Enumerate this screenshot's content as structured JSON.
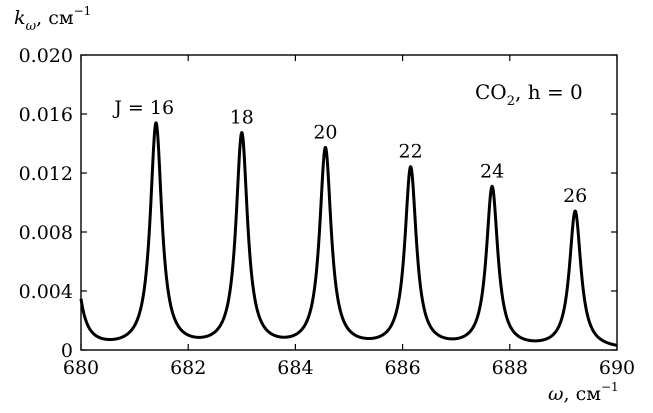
{
  "chart_data": {
    "type": "line",
    "ylabel": {
      "main": "k",
      "sub": "ω",
      "unit": ", см",
      "exp": "−1"
    },
    "xlabel": {
      "main": "ω",
      "unit": ", см",
      "exp": "−1"
    },
    "xlim": [
      680,
      690
    ],
    "ylim": [
      0,
      0.02
    ],
    "xticks": [
      680,
      682,
      684,
      686,
      688,
      690
    ],
    "yticks": [
      0,
      0.004,
      0.008,
      0.012,
      0.016,
      0.02
    ],
    "xtick_labels": [
      "680",
      "682",
      "684",
      "686",
      "688",
      "690"
    ],
    "ytick_labels": [
      "0",
      "0.004",
      "0.008",
      "0.012",
      "0.016",
      "0.020"
    ],
    "annotation_box": {
      "species": "CO",
      "species_sub": "2",
      "param_text": ", h = 0"
    },
    "peaks": [
      {
        "J_label": "J = 16",
        "position": 681.4,
        "peak_value": 0.0152
      },
      {
        "J_label": "18",
        "position": 683.0,
        "peak_value": 0.0145
      },
      {
        "J_label": "20",
        "position": 684.56,
        "peak_value": 0.0135
      },
      {
        "J_label": "22",
        "position": 686.15,
        "peak_value": 0.0122
      },
      {
        "J_label": "24",
        "position": 687.67,
        "peak_value": 0.0109
      },
      {
        "J_label": "26",
        "position": 689.22,
        "peak_value": 0.0093
      }
    ],
    "left_edge_value": 0.0033,
    "grid": false,
    "legend": "none"
  }
}
